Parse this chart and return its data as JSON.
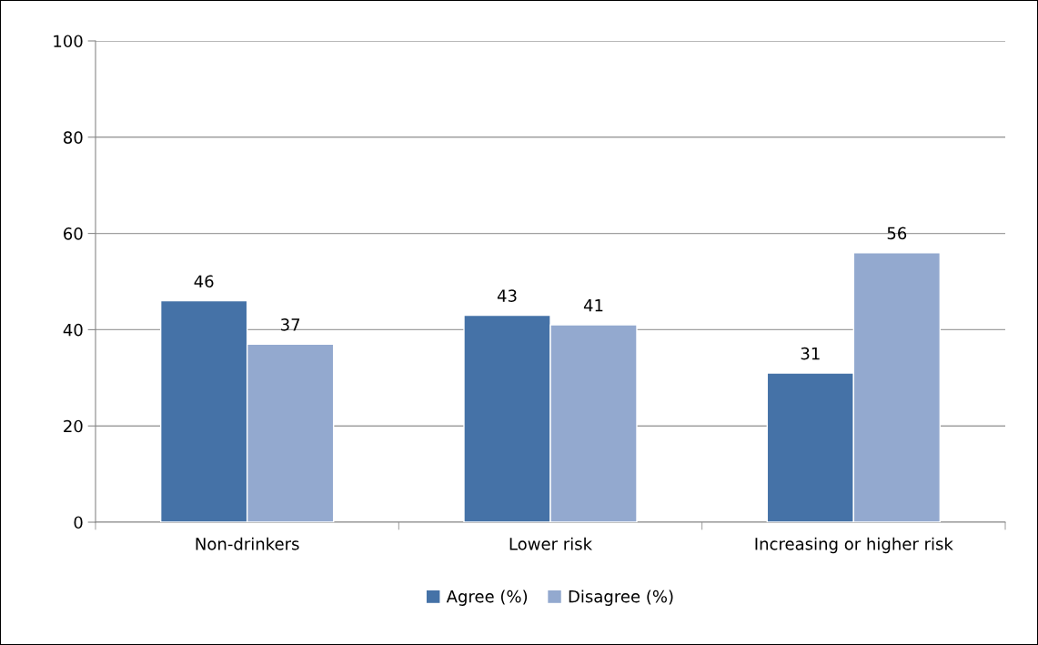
{
  "chart_data": {
    "type": "bar",
    "categories": [
      "Non-drinkers",
      "Lower risk",
      "Increasing or higher risk"
    ],
    "series": [
      {
        "name": "Agree (%)",
        "color": "#4572a7",
        "values": [
          46,
          43,
          31
        ]
      },
      {
        "name": "Disagree (%)",
        "color": "#93a9cf",
        "values": [
          37,
          41,
          56
        ]
      }
    ],
    "ylim": [
      0,
      100
    ],
    "yticks": [
      0,
      20,
      40,
      60,
      80,
      100
    ],
    "grid": "y",
    "legend": "bottom",
    "data_labels": true
  }
}
